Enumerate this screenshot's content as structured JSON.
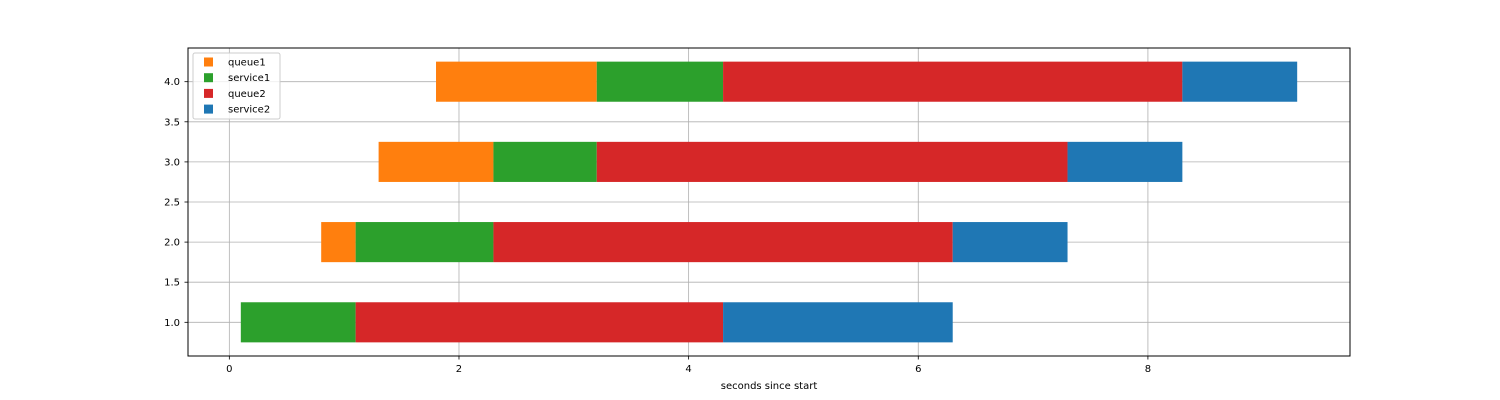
{
  "chart_data": {
    "type": "bar",
    "orientation": "horizontal-stacked",
    "title": "",
    "xlabel": "seconds since start",
    "ylabel": "",
    "xlim": [
      -0.36,
      9.76
    ],
    "ylim": [
      0.58,
      4.42
    ],
    "x_ticks": [
      0,
      2,
      4,
      6,
      8
    ],
    "y_ticks": [
      1.0,
      1.5,
      2.0,
      2.5,
      3.0,
      3.5,
      4.0
    ],
    "grid": true,
    "legend_position": "top-left",
    "bar_height": 0.5,
    "series": [
      {
        "name": "queue1",
        "color": "#ff7f0e"
      },
      {
        "name": "service1",
        "color": "#2ca02c"
      },
      {
        "name": "queue2",
        "color": "#d62728"
      },
      {
        "name": "service2",
        "color": "#1f77b4"
      }
    ],
    "rows": [
      {
        "y": 1.0,
        "segments": [
          {
            "series": "service1",
            "start": 0.1,
            "end": 1.1
          },
          {
            "series": "queue2",
            "start": 1.1,
            "end": 4.3
          },
          {
            "series": "service2",
            "start": 4.3,
            "end": 6.3
          }
        ]
      },
      {
        "y": 2.0,
        "segments": [
          {
            "series": "queue1",
            "start": 0.8,
            "end": 1.1
          },
          {
            "series": "service1",
            "start": 1.1,
            "end": 2.3
          },
          {
            "series": "queue2",
            "start": 2.3,
            "end": 6.3
          },
          {
            "series": "service2",
            "start": 6.3,
            "end": 7.3
          }
        ]
      },
      {
        "y": 3.0,
        "segments": [
          {
            "series": "queue1",
            "start": 1.3,
            "end": 2.3
          },
          {
            "series": "service1",
            "start": 2.3,
            "end": 3.2
          },
          {
            "series": "queue2",
            "start": 3.2,
            "end": 7.3
          },
          {
            "series": "service2",
            "start": 7.3,
            "end": 8.3
          }
        ]
      },
      {
        "y": 4.0,
        "segments": [
          {
            "series": "queue1",
            "start": 1.8,
            "end": 3.2
          },
          {
            "series": "service1",
            "start": 3.2,
            "end": 4.3
          },
          {
            "series": "queue2",
            "start": 4.3,
            "end": 8.3
          },
          {
            "series": "service2",
            "start": 8.3,
            "end": 9.3
          }
        ]
      }
    ]
  }
}
